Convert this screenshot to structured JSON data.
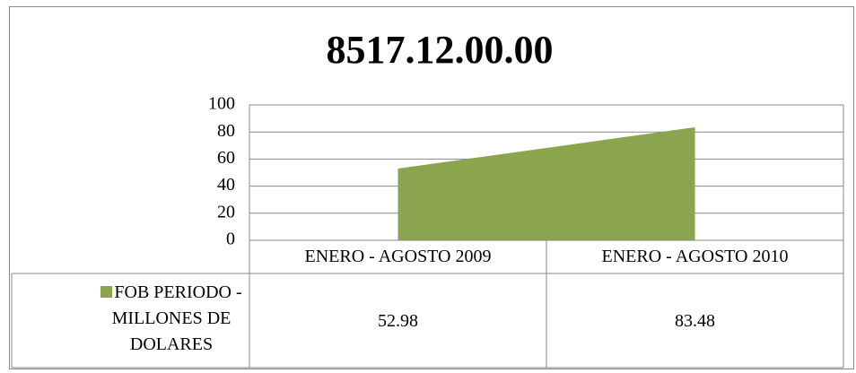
{
  "chart_data": {
    "type": "area",
    "title": "8517.12.00.00",
    "categories": [
      "ENERO - AGOSTO 2009",
      "ENERO - AGOSTO 2010"
    ],
    "series": [
      {
        "name": "FOB PERIODO - MILLONES DE DOLARES",
        "color": "#8aa54d",
        "values": [
          52.98,
          83.48
        ]
      }
    ],
    "ylim": [
      0,
      100
    ],
    "yticks": [
      0,
      20,
      40,
      60,
      80,
      100
    ],
    "grid": true,
    "data_table": true
  }
}
